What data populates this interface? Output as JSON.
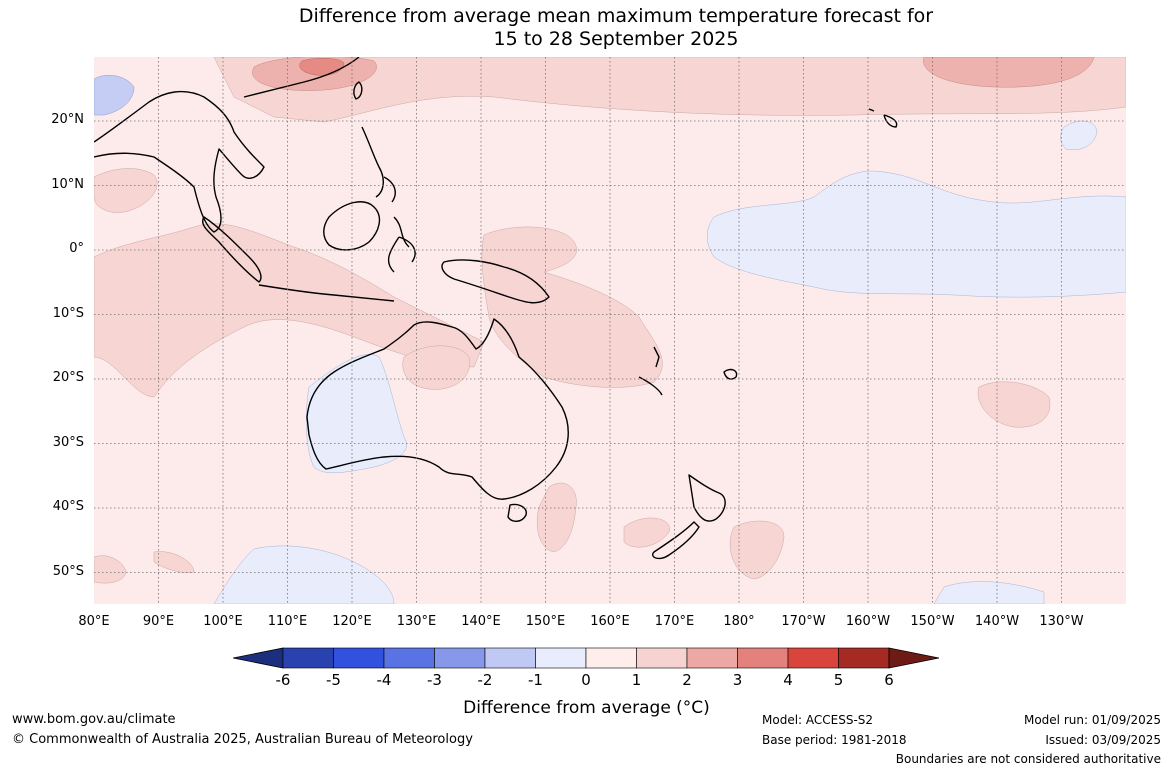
{
  "title": [
    "Difference from average mean maximum temperature forecast for",
    "15 to 28 September 2025"
  ],
  "map": {
    "region": "Australia, Indian Ocean and Western Pacific",
    "lat_labels": [
      "20°N",
      "10°N",
      "0°",
      "10°S",
      "20°S",
      "30°S",
      "40°S",
      "50°S"
    ],
    "lon_labels": [
      "80°E",
      "90°E",
      "100°E",
      "110°E",
      "120°E",
      "130°E",
      "140°E",
      "150°E",
      "160°E",
      "170°E",
      "180°",
      "170°W",
      "160°W",
      "150°W",
      "140°W",
      "130°W"
    ],
    "graticule": "dotted",
    "colors": {
      "anomaly_0_to_1": "#fcebea",
      "anomaly_1_to_2": "#f6d5d3",
      "anomaly_2_to_3": "#eeb2ae",
      "anomaly_3_to_4": "#e68b84",
      "anomaly_neg1_to_0": "#e8ecfb",
      "anomaly_neg2_to_neg1": "#c5cdf4",
      "coastline": "#000000"
    }
  },
  "colorbar": {
    "ticks": [
      "-6",
      "-5",
      "-4",
      "-3",
      "-2",
      "-1",
      "0",
      "1",
      "2",
      "3",
      "4",
      "5",
      "6"
    ],
    "colors": [
      "#1c2f7e",
      "#2a41b0",
      "#3151de",
      "#5a73e4",
      "#8797e9",
      "#c0c9f4",
      "#e9ecfc",
      "#fdeeeb",
      "#f6d3d0",
      "#eda8a3",
      "#e3827c",
      "#d9453d",
      "#a52a24",
      "#6e1b16"
    ],
    "label": "Difference from average (°C)"
  },
  "footer": {
    "website": "www.bom.gov.au/climate",
    "copyright": "© Commonwealth of Australia 2025, Australian Bureau of Meteorology",
    "model": "Model: ACCESS-S2",
    "base_period": "Base period: 1981-2018",
    "model_run": "Model run: 01/09/2025",
    "issued": "Issued: 03/09/2025",
    "disclaimer": "Boundaries are not considered authoritative"
  }
}
